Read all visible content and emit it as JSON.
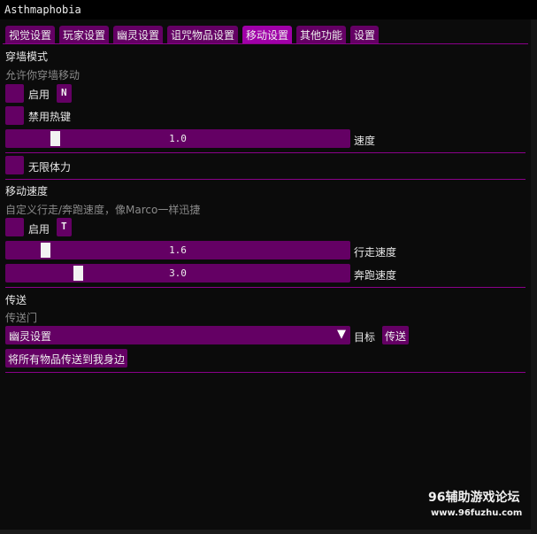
{
  "window": {
    "title": "Asthmaphobia"
  },
  "tabs": [
    {
      "label": "视觉设置"
    },
    {
      "label": "玩家设置"
    },
    {
      "label": "幽灵设置"
    },
    {
      "label": "诅咒物品设置"
    },
    {
      "label": "移动设置",
      "active": true
    },
    {
      "label": "其他功能"
    },
    {
      "label": "设置"
    }
  ],
  "noclip": {
    "title": "穿墙模式",
    "desc": "允许你穿墙移动",
    "enable_label": "启用",
    "hotkey": "N",
    "disable_hotkey_label": "禁用热键",
    "speed": {
      "value": "1.0",
      "label": "速度",
      "fraction": 0.13
    }
  },
  "stamina": {
    "label": "无限体力"
  },
  "movespeed": {
    "title": "移动速度",
    "desc": "自定义行走/奔跑速度，像Marco一样迅捷",
    "enable_label": "启用",
    "hotkey": "T",
    "walk": {
      "value": "1.6",
      "label": "行走速度",
      "fraction": 0.1
    },
    "run": {
      "value": "3.0",
      "label": "奔跑速度",
      "fraction": 0.2
    }
  },
  "teleport": {
    "title": "传送",
    "desc": "传送门",
    "target_value": "幽灵设置",
    "dropdown_arrow": "▼",
    "target_label": "目标",
    "teleport_button": "传送",
    "bring_all_button": "将所有物品传送到我身边"
  },
  "watermark": {
    "line1": "96辅助游戏论坛",
    "line2": "www.96fuzhu.com"
  },
  "colors": {
    "accent": "#640064",
    "active_tab": "#a000a8",
    "separator": "#8a008a"
  }
}
